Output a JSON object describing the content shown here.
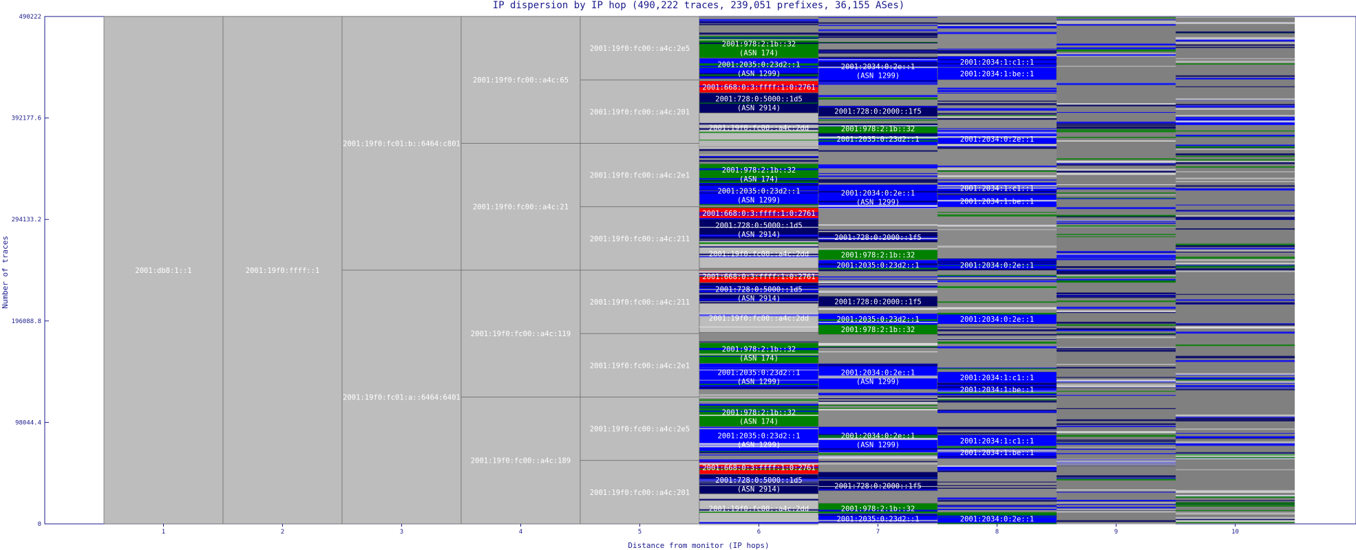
{
  "chart_data": {
    "type": "bar",
    "title": "IP dispersion by IP hop (490,222 traces, 239,051 prefixes, 36,155 ASes)",
    "xlabel": "Distance from monitor (IP hops)",
    "ylabel": "Number of traces",
    "x_ticks": [
      "1",
      "2",
      "3",
      "4",
      "5",
      "6",
      "7",
      "8",
      "9",
      "10"
    ],
    "y_ticks": [
      {
        "value": 0,
        "label": "0"
      },
      {
        "value": 98044.4,
        "label": "98044.4"
      },
      {
        "value": 196088.8,
        "label": "196088.8"
      },
      {
        "value": 294133.2,
        "label": "294133.2"
      },
      {
        "value": 392177.6,
        "label": "392177.6"
      },
      {
        "value": 490222,
        "label": "490222"
      }
    ],
    "ylim": [
      0,
      490222
    ],
    "colors": {
      "grey_node": "#bdbdbd",
      "dark_background": "#808080",
      "blue": "#0000ff",
      "navy": "#000066",
      "green": "#008000",
      "red": "#ff0000",
      "axis": "#1a1a8c"
    },
    "blocks": [
      {
        "hop": 1,
        "y0": 0,
        "y1": 490222,
        "label": "2001:db8:1::1",
        "color": "grey_node"
      },
      {
        "hop": 2,
        "y0": 0,
        "y1": 490222,
        "label": "2001:19f0:ffff::1",
        "color": "grey_node"
      },
      {
        "hop": 3,
        "y0": 245111,
        "y1": 490222,
        "label": "2001:19f0:fc01:b::6464:c801",
        "color": "grey_node"
      },
      {
        "hop": 3,
        "y0": 0,
        "y1": 245111,
        "label": "2001:19f0:fc01:a::6464:6401",
        "color": "grey_node"
      },
      {
        "hop": 4,
        "y0": 367667,
        "y1": 490222,
        "label": "2001:19f0:fc00::a4c:65",
        "color": "grey_node"
      },
      {
        "hop": 4,
        "y0": 245111,
        "y1": 367667,
        "label": "2001:19f0:fc00::a4c:21",
        "color": "grey_node"
      },
      {
        "hop": 4,
        "y0": 122556,
        "y1": 245111,
        "label": "2001:19f0:fc00::a4c:119",
        "color": "grey_node"
      },
      {
        "hop": 4,
        "y0": 0,
        "y1": 122556,
        "label": "2001:19f0:fc00::a4c:189",
        "color": "grey_node"
      },
      {
        "hop": 5,
        "y0": 428945,
        "y1": 490222,
        "label": "2001:19f0:fc00::a4c:2e5",
        "color": "grey_node"
      },
      {
        "hop": 5,
        "y0": 367667,
        "y1": 428945,
        "label": "2001:19f0:fc00::a4c:201",
        "color": "grey_node"
      },
      {
        "hop": 5,
        "y0": 306389,
        "y1": 367667,
        "label": "2001:19f0:fc00::a4c:2e1",
        "color": "grey_node"
      },
      {
        "hop": 5,
        "y0": 245111,
        "y1": 306389,
        "label": "2001:19f0:fc00::a4c:211",
        "color": "grey_node"
      },
      {
        "hop": 5,
        "y0": 183834,
        "y1": 245111,
        "label": "2001:19f0:fc00::a4c:211",
        "color": "grey_node"
      },
      {
        "hop": 5,
        "y0": 122556,
        "y1": 183834,
        "label": "2001:19f0:fc00::a4c:2e1",
        "color": "grey_node"
      },
      {
        "hop": 5,
        "y0": 61278,
        "y1": 122556,
        "label": "2001:19f0:fc00::a4c:2e5",
        "color": "grey_node"
      },
      {
        "hop": 5,
        "y0": 0,
        "y1": 61278,
        "label": "2001:19f0:fc00::a4c:201",
        "color": "grey_node"
      },
      {
        "hop": 6,
        "y0": 450000,
        "y1": 470000,
        "label": "2001:978:2:1b::32",
        "label2": "(ASN 174)",
        "color": "green"
      },
      {
        "hop": 6,
        "y0": 430000,
        "y1": 450000,
        "label": "2001:2035:0:23d2::1",
        "label2": "(ASN 1299)",
        "color": "blue"
      },
      {
        "hop": 6,
        "y0": 416500,
        "y1": 428000,
        "label": "2001:668:0:3:ffff:1:0:2761",
        "color": "red"
      },
      {
        "hop": 6,
        "y0": 397000,
        "y1": 416500,
        "label": "2001:728:0:5000::1d5",
        "label2": "(ASN 2914)",
        "color": "navy"
      },
      {
        "hop": 6,
        "y0": 369000,
        "y1": 397000,
        "label": "2001:19f0:fc00::a4c:2dd",
        "color": "grey_node"
      },
      {
        "hop": 6,
        "y0": 328000,
        "y1": 348000,
        "label": "2001:978:2:1b::32",
        "label2": "(ASN 174)",
        "color": "green"
      },
      {
        "hop": 6,
        "y0": 308000,
        "y1": 328000,
        "label": "2001:2035:0:23d2::1",
        "label2": "(ASN 1299)",
        "color": "blue"
      },
      {
        "hop": 6,
        "y0": 294500,
        "y1": 306000,
        "label": "2001:668:0:3:ffff:1:0:2761",
        "color": "red"
      },
      {
        "hop": 6,
        "y0": 275000,
        "y1": 294500,
        "label": "2001:728:0:5000::1d5",
        "label2": "(ASN 2914)",
        "color": "navy"
      },
      {
        "hop": 6,
        "y0": 247000,
        "y1": 275000,
        "label": "2001:19f0:fc00::a4c:2dd",
        "color": "grey_node"
      },
      {
        "hop": 6,
        "y0": 233000,
        "y1": 245000,
        "label": "2001:668:0:3:ffff:1:0:2761",
        "color": "red"
      },
      {
        "hop": 6,
        "y0": 213000,
        "y1": 233000,
        "label": "2001:728:0:5000::1d5",
        "label2": "(ASN 2914)",
        "color": "navy"
      },
      {
        "hop": 6,
        "y0": 185000,
        "y1": 213000,
        "label": "2001:19f0:fc00::a4c:2dd",
        "color": "grey_node"
      },
      {
        "hop": 6,
        "y0": 155000,
        "y1": 175000,
        "label": "2001:978:2:1b::32",
        "label2": "(ASN 174)",
        "color": "green"
      },
      {
        "hop": 6,
        "y0": 130000,
        "y1": 155000,
        "label": "2001:2035:0:23d2::1",
        "label2": "(ASN 1299)",
        "color": "blue"
      },
      {
        "hop": 6,
        "y0": 94000,
        "y1": 114000,
        "label": "2001:978:2:1b::32",
        "label2": "(ASN 174)",
        "color": "green"
      },
      {
        "hop": 6,
        "y0": 69000,
        "y1": 94000,
        "label": "2001:2035:0:23d2::1",
        "label2": "(ASN 1299)",
        "color": "blue"
      },
      {
        "hop": 6,
        "y0": 48000,
        "y1": 61000,
        "label": "2001:668:0:3:ffff:1:0:2761",
        "color": "red"
      },
      {
        "hop": 6,
        "y0": 29000,
        "y1": 48000,
        "label": "2001:728:0:5000::1d5",
        "label2": "(ASN 2914)",
        "color": "navy"
      },
      {
        "hop": 6,
        "y0": 1000,
        "y1": 29000,
        "label": "2001:19f0:fc00::a4c:2dd",
        "color": "grey_node"
      },
      {
        "hop": 7,
        "y0": 426000,
        "y1": 450000,
        "label": "2001:2034:0:2e::1",
        "label2": "(ASN 1299)",
        "color": "blue"
      },
      {
        "hop": 7,
        "y0": 394000,
        "y1": 404000,
        "label": "2001:728:0:2000::1f5",
        "color": "navy"
      },
      {
        "hop": 7,
        "y0": 377000,
        "y1": 387000,
        "label": "2001:978:2:1b::32",
        "color": "green"
      },
      {
        "hop": 7,
        "y0": 367000,
        "y1": 377000,
        "label": "2001:2035:0:23d2::1",
        "color": "blue"
      },
      {
        "hop": 7,
        "y0": 304000,
        "y1": 328000,
        "label": "2001:2034:0:2e::1",
        "label2": "(ASN 1299)",
        "color": "blue"
      },
      {
        "hop": 7,
        "y0": 272000,
        "y1": 282000,
        "label": "2001:728:0:2000::1f5",
        "color": "navy"
      },
      {
        "hop": 7,
        "y0": 255000,
        "y1": 265000,
        "label": "2001:978:2:1b::32",
        "color": "green"
      },
      {
        "hop": 7,
        "y0": 245000,
        "y1": 255000,
        "label": "2001:2035:0:23d2::1",
        "color": "blue"
      },
      {
        "hop": 7,
        "y0": 210000,
        "y1": 220000,
        "label": "2001:728:0:2000::1f5",
        "color": "navy"
      },
      {
        "hop": 7,
        "y0": 193000,
        "y1": 203000,
        "label": "2001:2035:0:23d2::1",
        "color": "blue"
      },
      {
        "hop": 7,
        "y0": 183000,
        "y1": 193000,
        "label": "2001:978:2:1b::32",
        "color": "green"
      },
      {
        "hop": 7,
        "y0": 130000,
        "y1": 155000,
        "label": "2001:2034:0:2e::1",
        "label2": "(ASN 1299)",
        "color": "blue"
      },
      {
        "hop": 7,
        "y0": 69000,
        "y1": 94000,
        "label": "2001:2034:0:2e::1",
        "label2": "(ASN 1299)",
        "color": "blue"
      },
      {
        "hop": 7,
        "y0": 32000,
        "y1": 42000,
        "label": "2001:728:0:2000::1f5",
        "color": "navy"
      },
      {
        "hop": 7,
        "y0": 10000,
        "y1": 20000,
        "label": "2001:978:2:1b::32",
        "color": "green"
      },
      {
        "hop": 7,
        "y0": 0,
        "y1": 10000,
        "label": "2001:2035:0:23d2::1",
        "color": "blue"
      },
      {
        "hop": 8,
        "y0": 441000,
        "y1": 452000,
        "label": "2001:2034:1:c1::1",
        "color": "blue"
      },
      {
        "hop": 8,
        "y0": 429000,
        "y1": 441000,
        "label": "2001:2034:1:be::1",
        "color": "blue"
      },
      {
        "hop": 8,
        "y0": 367000,
        "y1": 377000,
        "label": "2001:2034:0:2e::1",
        "color": "blue"
      },
      {
        "hop": 8,
        "y0": 319000,
        "y1": 330000,
        "label": "2001:2034:1:c1::1",
        "color": "blue"
      },
      {
        "hop": 8,
        "y0": 306000,
        "y1": 318000,
        "label": "2001:2034:1:be::1",
        "color": "blue"
      },
      {
        "hop": 8,
        "y0": 245000,
        "y1": 255000,
        "label": "2001:2034:0:2e::1",
        "color": "blue"
      },
      {
        "hop": 8,
        "y0": 193000,
        "y1": 203000,
        "label": "2001:2034:0:2e::1",
        "color": "blue"
      },
      {
        "hop": 8,
        "y0": 136000,
        "y1": 147000,
        "label": "2001:2034:1:c1::1",
        "color": "blue"
      },
      {
        "hop": 8,
        "y0": 124000,
        "y1": 136000,
        "label": "2001:2034:1:be::1",
        "color": "blue"
      },
      {
        "hop": 8,
        "y0": 75000,
        "y1": 86000,
        "label": "2001:2034:1:c1::1",
        "color": "blue"
      },
      {
        "hop": 8,
        "y0": 63000,
        "y1": 75000,
        "label": "2001:2034:1:be::1",
        "color": "blue"
      },
      {
        "hop": 8,
        "y0": 0,
        "y1": 10000,
        "label": "2001:2034:0:2e::1",
        "color": "blue"
      }
    ]
  }
}
